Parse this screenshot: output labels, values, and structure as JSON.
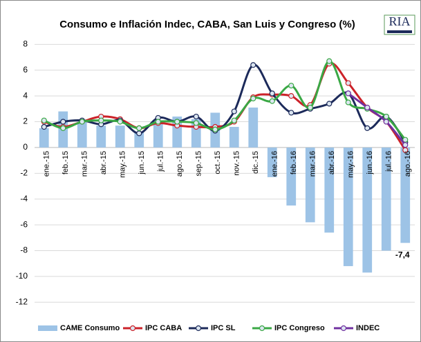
{
  "chart_data": {
    "type": "bar_line",
    "title": "Consumo e Inflación Indec, CABA, San Luis y Congreso (%)",
    "logo": "RIA",
    "categories": [
      "ene.-15",
      "feb.-15",
      "mar.-15",
      "abr.-15",
      "may.-15",
      "jun.-15",
      "jul.-15",
      "ago.-15",
      "sep.-15",
      "oct.-15",
      "nov.-15",
      "dic.-15",
      "ene.-16",
      "feb.-16",
      "mar.-16",
      "abr.-16",
      "may.-16",
      "jun.-16",
      "jul.-16",
      "ago.-16"
    ],
    "series": [
      {
        "name": "CAME Consumo",
        "kind": "bar",
        "color": "#9dc3e6",
        "values": [
          1.5,
          2.8,
          2.0,
          1.7,
          1.7,
          1.2,
          1.9,
          2.4,
          2.2,
          2.7,
          1.6,
          3.1,
          -2.3,
          -4.5,
          -5.8,
          -6.6,
          -9.2,
          -9.7,
          -8.0,
          -7.4
        ],
        "value_labels": [
          null,
          null,
          null,
          null,
          null,
          null,
          null,
          null,
          null,
          null,
          null,
          null,
          null,
          null,
          null,
          null,
          null,
          null,
          null,
          "-7,4"
        ]
      },
      {
        "name": "IPC CABA",
        "kind": "line",
        "color": "#cc2229",
        "values": [
          2.0,
          1.6,
          2.0,
          2.4,
          2.2,
          1.5,
          1.9,
          1.7,
          1.6,
          1.6,
          2.0,
          3.9,
          4.1,
          4.0,
          3.3,
          6.5,
          5.0,
          3.1,
          2.0,
          -0.2
        ]
      },
      {
        "name": "IPC SL",
        "kind": "line",
        "color": "#1c2a5a",
        "values": [
          1.6,
          2.0,
          2.1,
          1.8,
          2.1,
          1.1,
          2.3,
          2.0,
          2.4,
          1.3,
          2.8,
          6.4,
          4.2,
          2.7,
          3.0,
          3.4,
          4.2,
          1.5,
          2.4,
          0.4
        ]
      },
      {
        "name": "IPC Congreso",
        "kind": "line",
        "color": "#3aa845",
        "values": [
          2.1,
          1.5,
          2.0,
          2.1,
          2.0,
          1.5,
          2.0,
          2.0,
          1.9,
          1.4,
          2.1,
          3.8,
          3.6,
          4.8,
          3.1,
          6.7,
          3.5,
          3.0,
          2.4,
          0.6
        ]
      },
      {
        "name": "INDEC",
        "kind": "line",
        "color": "#7030a0",
        "values": [
          null,
          null,
          null,
          null,
          null,
          null,
          null,
          null,
          null,
          null,
          null,
          null,
          null,
          null,
          null,
          null,
          4.2,
          3.1,
          2.0,
          0.2
        ]
      }
    ],
    "ylim": [
      -13,
      8.5
    ],
    "yticks": [
      -12,
      -10,
      -8,
      -6,
      -4,
      -2,
      0,
      2,
      4,
      6,
      8
    ],
    "grid": true
  }
}
